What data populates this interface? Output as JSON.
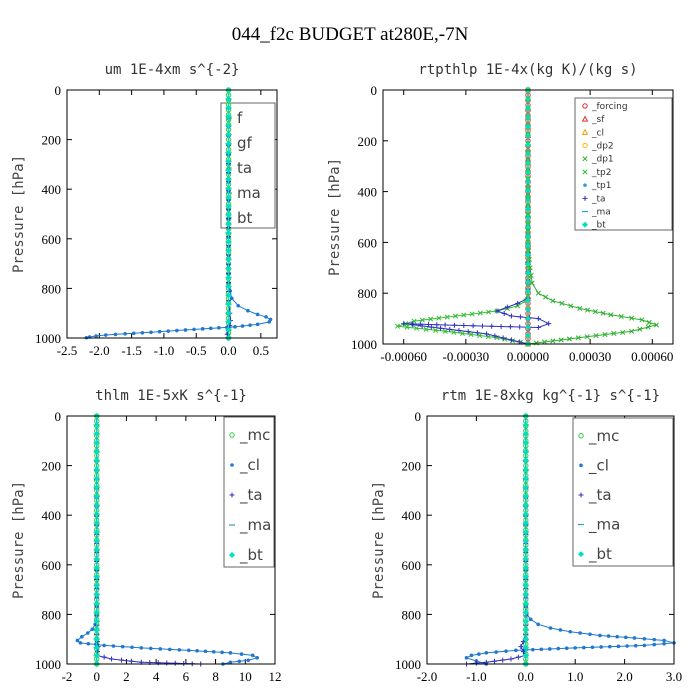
{
  "suptitle": "044_f2c  BUDGET at280E,-7N",
  "chart_data": [
    {
      "type": "line",
      "title": "um  1E-4xm s^{-2}",
      "ylabel": "Pressure [hPa]",
      "xlim": [
        -2.5,
        0.75
      ],
      "ylim": [
        1000,
        0
      ],
      "xticks": [
        -2.5,
        -2.0,
        -1.5,
        -1.0,
        -0.5,
        0.0,
        0.5
      ],
      "xtick_labels": [
        "-2.5",
        "-2.0",
        "-1.5",
        "-1.0",
        "-0.5",
        "0.0",
        "0.5"
      ],
      "yticks": [
        0,
        200,
        400,
        600,
        800,
        1000
      ],
      "ytick_labels": [
        "0",
        "200",
        "400",
        "600",
        "800",
        "1000"
      ],
      "legend_position": "top-right",
      "legend_size": "large",
      "legend_items": [
        "f",
        "gf",
        "ta",
        "ma",
        "bt"
      ],
      "series": [
        {
          "name": "_f",
          "color": "#2ecc40",
          "marker": "o",
          "dense": true,
          "x": [
            0,
            0,
            0,
            0
          ],
          "y": [
            0,
            500,
            900,
            1000
          ]
        },
        {
          "name": "_gf",
          "color": "#1f78d1",
          "marker": "dot",
          "x": [
            0.0,
            0.0,
            0.05,
            0.15,
            0.3,
            0.45,
            0.58,
            0.65,
            0.63,
            0.45,
            0.1,
            -0.4,
            -0.8,
            -1.2,
            -1.6,
            -1.9,
            -2.05,
            -2.15,
            -2.2
          ],
          "y": [
            0,
            780,
            840,
            870,
            890,
            905,
            915,
            925,
            935,
            945,
            955,
            963,
            970,
            977,
            983,
            988,
            992,
            996,
            999
          ]
        },
        {
          "name": "_ta",
          "color": "#3030c0",
          "marker": "plus",
          "x": [
            0,
            0,
            0.02,
            0.03,
            0.02,
            0.0,
            -0.02,
            -0.01
          ],
          "y": [
            0,
            850,
            900,
            930,
            950,
            970,
            985,
            1000
          ]
        },
        {
          "name": "_ma",
          "color": "#2aa0c8",
          "marker": "dash",
          "x": [
            0,
            0,
            0
          ],
          "y": [
            0,
            900,
            1000
          ]
        },
        {
          "name": "_bt",
          "color": "#00e0c0",
          "marker": "diamond",
          "x": [
            0,
            0,
            0
          ],
          "y": [
            0,
            900,
            1000
          ]
        }
      ]
    },
    {
      "type": "line",
      "title": "rtpthlp  1E-4x(kg K)/(kg s)",
      "ylabel": "Pressure [hPa]",
      "xlim": [
        -0.0007,
        0.0007
      ],
      "ylim": [
        1000,
        0
      ],
      "xticks": [
        -0.0006,
        -0.0003,
        0.0,
        0.0003,
        0.0006
      ],
      "xtick_labels": [
        "-0.00060",
        "-0.00030",
        "0.00000",
        "0.00030",
        "0.00060"
      ],
      "yticks": [
        0,
        200,
        400,
        600,
        800,
        1000
      ],
      "ytick_labels": [
        "0",
        "200",
        "400",
        "600",
        "800",
        "1000"
      ],
      "legend_position": "top-right",
      "legend_size": "small",
      "legend_items": [
        "_forcing",
        "_sf",
        "_cl",
        "_dp2",
        "_dp1",
        "_tp2",
        "_tp1",
        "_ta",
        "_ma",
        "_bt"
      ],
      "series": [
        {
          "name": "_forcing",
          "color": "#e03030",
          "marker": "o",
          "dense": true,
          "x": [
            0,
            0,
            0
          ],
          "y": [
            0,
            500,
            1000
          ]
        },
        {
          "name": "_sf",
          "color": "#e03030",
          "marker": "tri",
          "x": [
            0,
            0,
            0
          ],
          "y": [
            0,
            500,
            1000
          ]
        },
        {
          "name": "_cl",
          "color": "#f0a000",
          "marker": "tri",
          "x": [
            0,
            0,
            0
          ],
          "y": [
            0,
            500,
            1000
          ]
        },
        {
          "name": "_dp1",
          "color": "#30b030",
          "marker": "x",
          "x": [
            0.0,
            0.0,
            1e-05,
            2e-05,
            5e-05,
            0.00012,
            0.00025,
            0.0004,
            0.00055,
            0.00062,
            0.0005,
            0.0002,
            0.0
          ],
          "y": [
            0,
            600,
            700,
            760,
            800,
            830,
            860,
            885,
            905,
            925,
            950,
            980,
            1000
          ]
        },
        {
          "name": "_tp2",
          "color": "#30c030",
          "marker": "x",
          "x": [
            0.0,
            0.0,
            -1e-05,
            -5e-05,
            -0.00015,
            -0.00035,
            -0.00055,
            -0.00063,
            -0.0004,
            -0.00015,
            0.0
          ],
          "y": [
            0,
            800,
            830,
            850,
            870,
            890,
            910,
            930,
            950,
            975,
            1000
          ]
        },
        {
          "name": "_ta",
          "color": "#3030c0",
          "marker": "plus",
          "x": [
            0.0,
            0.0,
            -5e-05,
            -0.00015,
            -8e-05,
            5e-05,
            0.0001,
            5e-05,
            -0.0004,
            -0.0006,
            -0.0002,
            0.0
          ],
          "y": [
            0,
            820,
            840,
            870,
            890,
            900,
            920,
            935,
            925,
            920,
            960,
            1000
          ]
        },
        {
          "name": "_bt",
          "color": "#00e0c0",
          "marker": "diamond",
          "x": [
            0,
            0,
            0
          ],
          "y": [
            0,
            900,
            1000
          ]
        }
      ]
    },
    {
      "type": "line",
      "title": "thlm  1E-5xK s^{-1}",
      "ylabel": "Pressure [hPa]",
      "xlim": [
        -2,
        12
      ],
      "ylim": [
        1000,
        0
      ],
      "xticks": [
        -2,
        0,
        2,
        4,
        6,
        8,
        10,
        12
      ],
      "xtick_labels": [
        "-2",
        "0",
        "2",
        "4",
        "6",
        "8",
        "10",
        "12"
      ],
      "yticks": [
        0,
        200,
        400,
        600,
        800,
        1000
      ],
      "ytick_labels": [
        "0",
        "200",
        "400",
        "600",
        "800",
        "1000"
      ],
      "legend_position": "top-right",
      "legend_size": "large",
      "legend_items": [
        "_mc",
        "_cl",
        "_ta",
        "_ma",
        "_bt"
      ],
      "series": [
        {
          "name": "_mc",
          "color": "#2ecc40",
          "marker": "o",
          "dense": true,
          "x": [
            0,
            0,
            0
          ],
          "y": [
            0,
            500,
            1000
          ]
        },
        {
          "name": "_cl",
          "color": "#1f78d1",
          "marker": "dot",
          "x": [
            0.0,
            0.0,
            -0.1,
            -0.3,
            -0.6,
            -1.0,
            -1.3,
            -1.1,
            0.5,
            3.0,
            6.2,
            9.0,
            10.5,
            10.8,
            10.2,
            9.0,
            8.5
          ],
          "y": [
            0,
            800,
            840,
            860,
            875,
            890,
            905,
            915,
            925,
            935,
            945,
            955,
            965,
            975,
            985,
            993,
            1000
          ]
        },
        {
          "name": "_ta",
          "color": "#3030c0",
          "marker": "plus",
          "x": [
            0,
            0,
            0.05,
            0.1,
            0.05,
            0.0,
            1.0,
            3.0,
            7.0
          ],
          "y": [
            0,
            880,
            910,
            930,
            950,
            965,
            980,
            993,
            1000
          ]
        },
        {
          "name": "_ma",
          "color": "#2aa0c8",
          "marker": "dash",
          "x": [
            0,
            0,
            0
          ],
          "y": [
            0,
            900,
            1000
          ]
        },
        {
          "name": "_bt",
          "color": "#00e0c0",
          "marker": "diamond",
          "x": [
            0,
            0,
            0
          ],
          "y": [
            0,
            900,
            1000
          ]
        }
      ]
    },
    {
      "type": "line",
      "title": "rtm  1E-8xkg kg^{-1} s^{-1}",
      "ylabel": "Pressure [hPa]",
      "xlim": [
        -2.0,
        3.0
      ],
      "ylim": [
        1000,
        0
      ],
      "xticks": [
        -2.0,
        -1.0,
        0.0,
        1.0,
        2.0,
        3.0
      ],
      "xtick_labels": [
        "-2.0",
        "-1.0",
        "0.0",
        "1.0",
        "2.0",
        "3.0"
      ],
      "yticks": [
        0,
        200,
        400,
        600,
        800,
        1000
      ],
      "ytick_labels": [
        "0",
        "200",
        "400",
        "600",
        "800",
        "1000"
      ],
      "legend_position": "top-right",
      "legend_size": "large",
      "legend_items": [
        "_mc",
        "_cl",
        "_ta",
        "_ma",
        "_bt"
      ],
      "series": [
        {
          "name": "_mc",
          "color": "#2ecc40",
          "marker": "o",
          "dense": true,
          "x": [
            0,
            0,
            0
          ],
          "y": [
            0,
            500,
            1000
          ]
        },
        {
          "name": "_cl",
          "color": "#1f78d1",
          "marker": "dot",
          "x": [
            0.0,
            0.0,
            0.02,
            0.1,
            0.25,
            0.5,
            0.9,
            1.5,
            2.2,
            2.8,
            3.0,
            2.4,
            1.0,
            -0.2,
            -0.8,
            -1.1,
            -1.2,
            -1.0,
            -0.8
          ],
          "y": [
            0,
            760,
            800,
            820,
            840,
            855,
            870,
            885,
            895,
            905,
            915,
            925,
            935,
            945,
            955,
            965,
            975,
            988,
            1000
          ]
        },
        {
          "name": "_ta",
          "color": "#3030c0",
          "marker": "plus",
          "x": [
            0,
            0,
            -0.05,
            -0.1,
            -0.05,
            0.0,
            -0.3,
            -0.8,
            -1.2
          ],
          "y": [
            0,
            880,
            910,
            930,
            950,
            965,
            980,
            993,
            1000
          ]
        },
        {
          "name": "_ma",
          "color": "#2aa0c8",
          "marker": "dash",
          "x": [
            0,
            0,
            0
          ],
          "y": [
            0,
            900,
            1000
          ]
        },
        {
          "name": "_bt",
          "color": "#00e0c0",
          "marker": "diamond",
          "x": [
            0,
            0,
            0
          ],
          "y": [
            0,
            900,
            1000
          ]
        }
      ]
    }
  ]
}
